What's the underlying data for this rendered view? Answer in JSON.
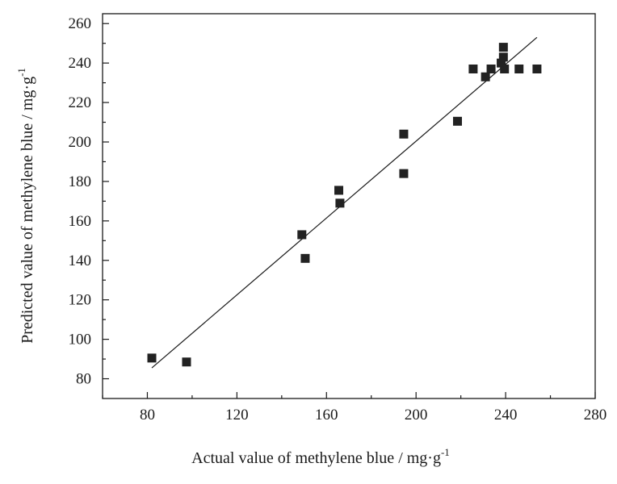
{
  "chart_data": {
    "type": "scatter",
    "xlabel": "Actual value of methylene blue / mg·g",
    "xlabel_sup": "-1",
    "ylabel": "Predicted value of methylene blue / mg·g",
    "ylabel_sup": "-1",
    "xlim": [
      60,
      280
    ],
    "ylim": [
      70,
      265
    ],
    "x_ticks": [
      80,
      120,
      160,
      200,
      240,
      280
    ],
    "y_ticks": [
      80,
      100,
      120,
      140,
      160,
      180,
      200,
      220,
      240,
      260
    ],
    "x_minor_ticks": [
      60,
      100,
      140,
      180,
      220,
      260
    ],
    "y_minor_ticks": [
      90,
      110,
      130,
      150,
      170,
      190,
      210,
      230,
      250
    ],
    "marker_color": "#222222",
    "series": [
      {
        "name": "Data points",
        "points": [
          [
            82,
            90.5
          ],
          [
            97.5,
            88.5
          ],
          [
            149,
            153
          ],
          [
            150.5,
            141
          ],
          [
            165.5,
            175.5
          ],
          [
            166,
            169
          ],
          [
            194.5,
            204
          ],
          [
            194.5,
            184
          ],
          [
            218.5,
            210.5
          ],
          [
            225.5,
            237
          ],
          [
            231,
            233
          ],
          [
            233.5,
            237
          ],
          [
            238,
            240
          ],
          [
            239,
            248
          ],
          [
            239,
            243
          ],
          [
            239.5,
            237
          ],
          [
            246,
            237
          ],
          [
            254,
            237
          ]
        ]
      }
    ],
    "fit_line": {
      "name": "Fit",
      "x": [
        82,
        254
      ],
      "y": [
        85.5,
        253
      ]
    }
  }
}
